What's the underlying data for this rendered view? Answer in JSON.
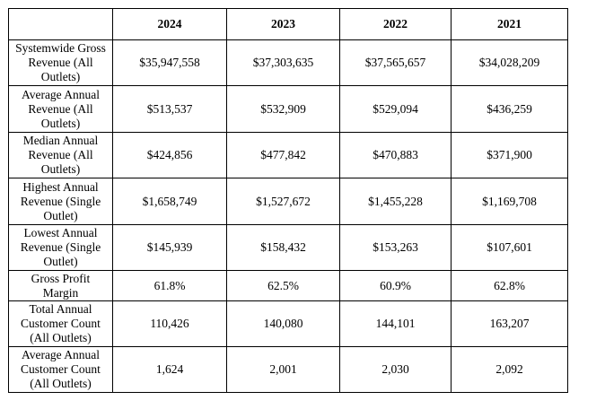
{
  "table": {
    "header_corner": "",
    "years": [
      "2024",
      "2023",
      "2022",
      "2021"
    ],
    "rows": [
      {
        "label_lines": [
          "Systemwide Gross",
          "Revenue (All",
          "Outlets)"
        ],
        "values": [
          "$35,947,558",
          "$37,303,635",
          "$37,565,657",
          "$34,028,209"
        ]
      },
      {
        "label_lines": [
          "Average Annual",
          "Revenue (All",
          "Outlets)"
        ],
        "values": [
          "$513,537",
          "$532,909",
          "$529,094",
          "$436,259"
        ]
      },
      {
        "label_lines": [
          "Median Annual",
          "Revenue (All",
          "Outlets)"
        ],
        "values": [
          "$424,856",
          "$477,842",
          "$470,883",
          "$371,900"
        ]
      },
      {
        "label_lines": [
          "Highest Annual",
          "Revenue (Single",
          "Outlet)"
        ],
        "values": [
          "$1,658,749",
          "$1,527,672",
          "$1,455,228",
          "$1,169,708"
        ]
      },
      {
        "label_lines": [
          "Lowest Annual",
          "Revenue (Single",
          "Outlet)"
        ],
        "values": [
          "$145,939",
          "$158,432",
          "$153,263",
          "$107,601"
        ]
      },
      {
        "label_lines": [
          "Gross Profit",
          "Margin"
        ],
        "values": [
          "61.8%",
          "62.5%",
          "60.9%",
          "62.8%"
        ]
      },
      {
        "label_lines": [
          "Total Annual",
          "Customer Count",
          "(All Outlets)"
        ],
        "values": [
          "110,426",
          "140,080",
          "144,101",
          "163,207"
        ]
      },
      {
        "label_lines": [
          "Average Annual",
          "Customer Count",
          "(All Outlets)"
        ],
        "values": [
          "1,624",
          "2,001",
          "2,030",
          "2,092"
        ]
      }
    ]
  }
}
